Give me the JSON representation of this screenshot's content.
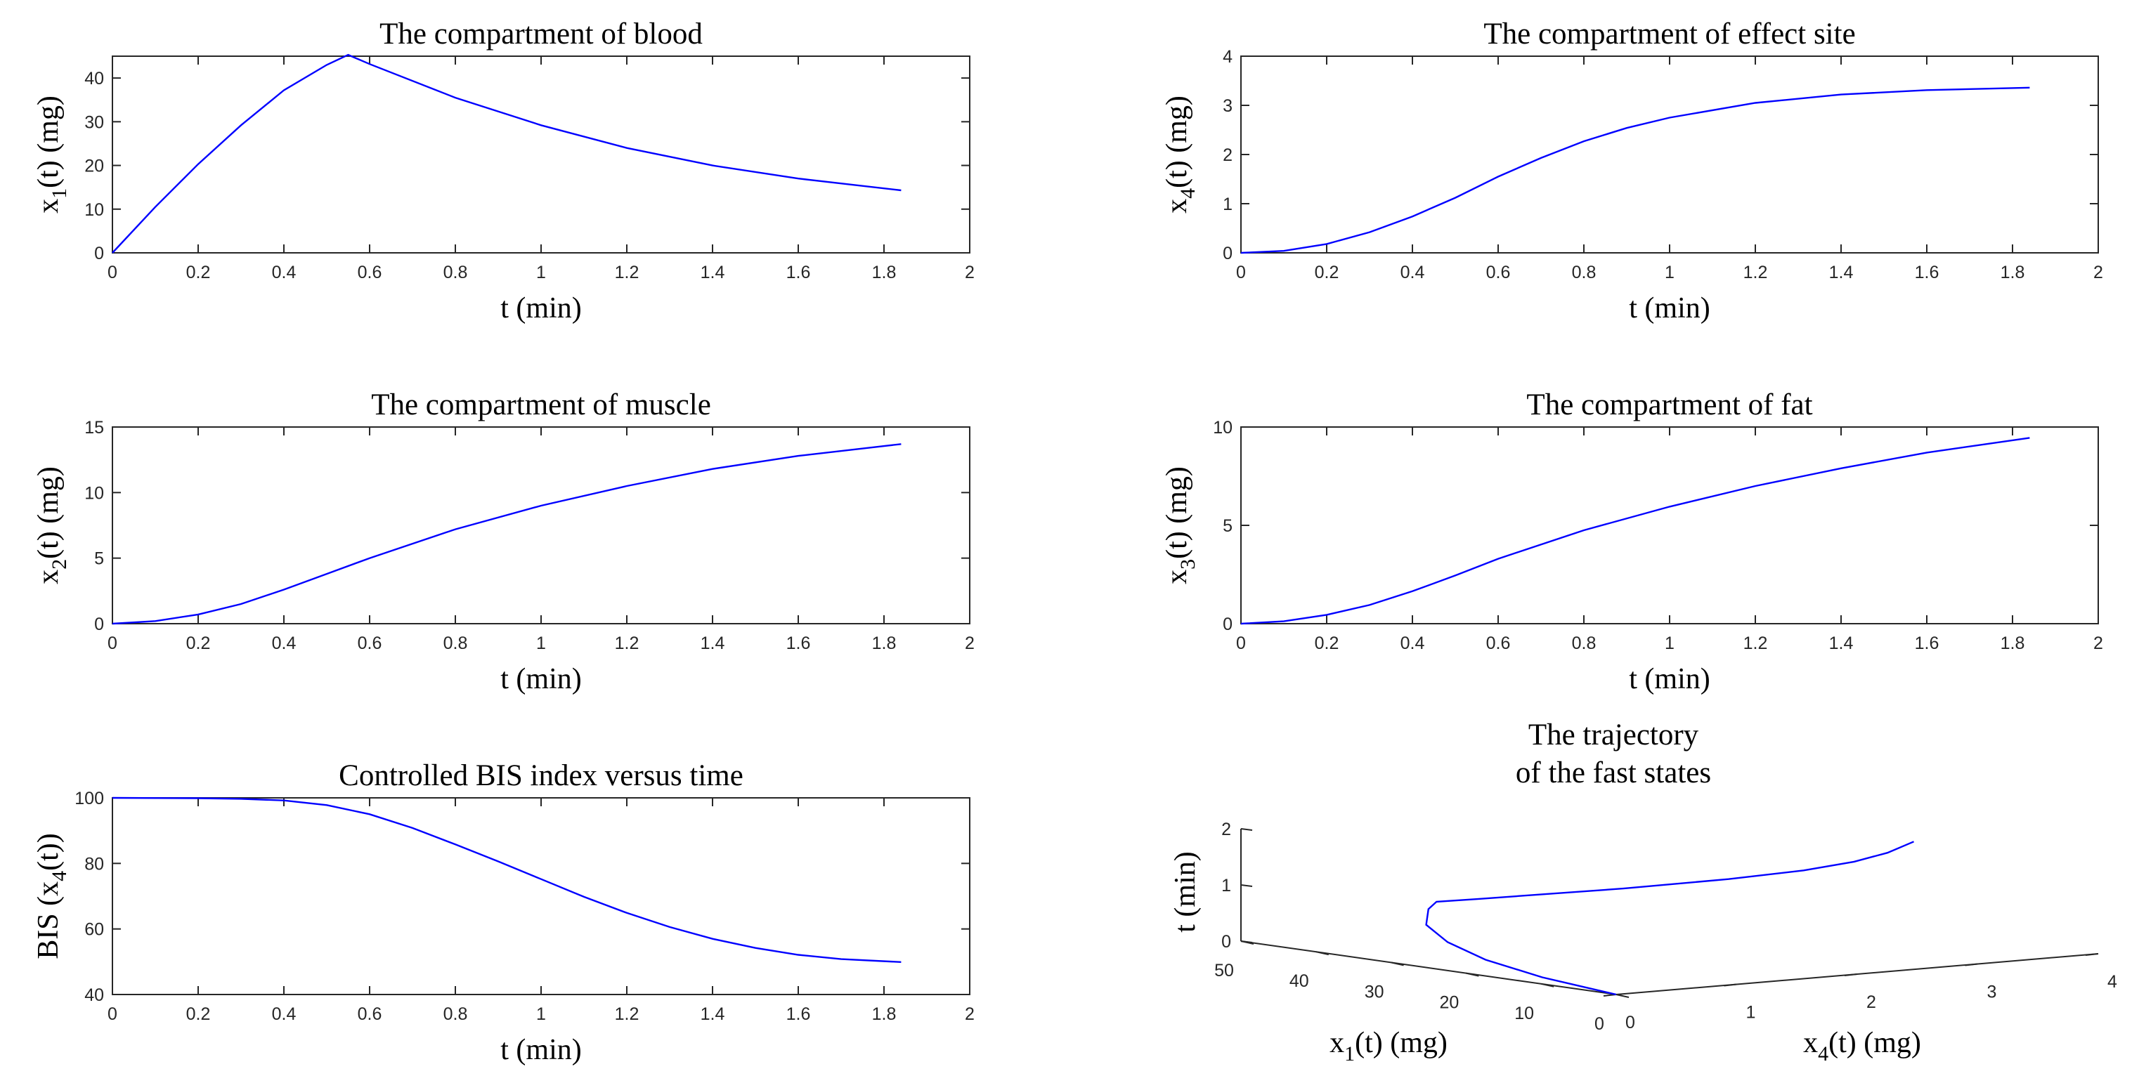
{
  "colors": {
    "line": "#0000ff",
    "axis": "#262626",
    "background": "#ffffff"
  },
  "chart_data": [
    {
      "id": "blood",
      "type": "line",
      "title": "The compartment of blood",
      "xlabel": "t (min)",
      "ylabel": {
        "base": "x",
        "sub": "1",
        "rest": "(t) (mg)"
      },
      "xlim": [
        0,
        2
      ],
      "ylim": [
        0,
        45
      ],
      "xticks": [
        "0",
        "0.2",
        "0.4",
        "0.6",
        "0.8",
        "1",
        "1.2",
        "1.4",
        "1.6",
        "1.8",
        "2"
      ],
      "yticks": [
        "0",
        "10",
        "20",
        "30",
        "40"
      ],
      "ytick_values": [
        0,
        10,
        20,
        30,
        40
      ],
      "series": [
        {
          "name": "x1",
          "x": [
            0,
            0.1,
            0.2,
            0.3,
            0.4,
            0.5,
            0.55,
            0.6,
            0.8,
            1.0,
            1.2,
            1.4,
            1.6,
            1.84
          ],
          "y": [
            0,
            10.5,
            20.3,
            29.2,
            37.2,
            43.0,
            45.3,
            43.2,
            35.5,
            29.2,
            24.0,
            20.0,
            17.0,
            14.3
          ]
        }
      ]
    },
    {
      "id": "effect",
      "type": "line",
      "title": "The compartment of effect site",
      "xlabel": "t (min)",
      "ylabel": {
        "base": "x",
        "sub": "4",
        "rest": "(t) (mg)"
      },
      "xlim": [
        0,
        2
      ],
      "ylim": [
        0,
        4
      ],
      "xticks": [
        "0",
        "0.2",
        "0.4",
        "0.6",
        "0.8",
        "1",
        "1.2",
        "1.4",
        "1.6",
        "1.8",
        "2"
      ],
      "yticks": [
        "0",
        "1",
        "2",
        "3",
        "4"
      ],
      "ytick_values": [
        0,
        1,
        2,
        3,
        4
      ],
      "series": [
        {
          "name": "x4",
          "x": [
            0,
            0.1,
            0.2,
            0.3,
            0.4,
            0.5,
            0.6,
            0.7,
            0.8,
            0.9,
            1.0,
            1.2,
            1.4,
            1.6,
            1.84
          ],
          "y": [
            0,
            0.04,
            0.18,
            0.42,
            0.74,
            1.12,
            1.55,
            1.93,
            2.27,
            2.54,
            2.75,
            3.05,
            3.22,
            3.31,
            3.36
          ]
        }
      ]
    },
    {
      "id": "muscle",
      "type": "line",
      "title": "The compartment of muscle",
      "xlabel": "t (min)",
      "ylabel": {
        "base": "x",
        "sub": "2",
        "rest": "(t) (mg)"
      },
      "xlim": [
        0,
        2
      ],
      "ylim": [
        0,
        15
      ],
      "xticks": [
        "0",
        "0.2",
        "0.4",
        "0.6",
        "0.8",
        "1",
        "1.2",
        "1.4",
        "1.6",
        "1.8",
        "2"
      ],
      "yticks": [
        "0",
        "5",
        "10",
        "15"
      ],
      "ytick_values": [
        0,
        5,
        10,
        15
      ],
      "series": [
        {
          "name": "x2",
          "x": [
            0,
            0.1,
            0.2,
            0.3,
            0.4,
            0.5,
            0.6,
            0.8,
            1.0,
            1.2,
            1.4,
            1.6,
            1.84
          ],
          "y": [
            0,
            0.2,
            0.7,
            1.5,
            2.6,
            3.8,
            5.0,
            7.2,
            9.0,
            10.5,
            11.8,
            12.8,
            13.7
          ]
        }
      ]
    },
    {
      "id": "fat",
      "type": "line",
      "title": "The compartment of fat",
      "xlabel": "t (min)",
      "ylabel": {
        "base": "x",
        "sub": "3",
        "rest": "(t) (mg)"
      },
      "xlim": [
        0,
        2
      ],
      "ylim": [
        0,
        10
      ],
      "xticks": [
        "0",
        "0.2",
        "0.4",
        "0.6",
        "0.8",
        "1",
        "1.2",
        "1.4",
        "1.6",
        "1.8",
        "2"
      ],
      "yticks": [
        "0",
        "5",
        "10"
      ],
      "ytick_values": [
        0,
        5,
        10
      ],
      "series": [
        {
          "name": "x3",
          "x": [
            0,
            0.1,
            0.2,
            0.3,
            0.4,
            0.5,
            0.6,
            0.8,
            1.0,
            1.2,
            1.4,
            1.6,
            1.84
          ],
          "y": [
            0,
            0.12,
            0.45,
            0.95,
            1.65,
            2.45,
            3.3,
            4.75,
            5.95,
            7.0,
            7.9,
            8.7,
            9.45
          ]
        }
      ]
    },
    {
      "id": "bis",
      "type": "line",
      "title": "Controlled BIS index versus time",
      "xlabel": "t (min)",
      "ylabel": {
        "base": "BIS (x",
        "sub": "4",
        "rest": "(t))"
      },
      "xlim": [
        0,
        2
      ],
      "ylim": [
        40,
        100
      ],
      "xticks": [
        "0",
        "0.2",
        "0.4",
        "0.6",
        "0.8",
        "1",
        "1.2",
        "1.4",
        "1.6",
        "1.8",
        "2"
      ],
      "yticks": [
        "40",
        "60",
        "80",
        "100"
      ],
      "ytick_values": [
        40,
        60,
        80,
        100
      ],
      "series": [
        {
          "name": "BIS",
          "x": [
            0,
            0.2,
            0.3,
            0.4,
            0.5,
            0.6,
            0.7,
            0.8,
            0.9,
            1.0,
            1.1,
            1.2,
            1.3,
            1.4,
            1.5,
            1.6,
            1.7,
            1.84
          ],
          "y": [
            100,
            99.9,
            99.7,
            99.2,
            97.8,
            95.0,
            90.8,
            85.8,
            80.6,
            75.2,
            69.8,
            64.9,
            60.6,
            57.0,
            54.2,
            52.1,
            50.8,
            49.9
          ]
        }
      ]
    },
    {
      "id": "trajectory",
      "type": "line3d",
      "title_lines": [
        "The trajectory",
        "of the fast states"
      ],
      "xlabel": {
        "base": "x",
        "sub": "1",
        "rest": "(t) (mg)"
      },
      "ylabel": {
        "base": "x",
        "sub": "4",
        "rest": "(t) (mg)"
      },
      "zlabel": "t (min)",
      "x1_lim": [
        0,
        50
      ],
      "x4_lim": [
        0,
        4
      ],
      "t_lim": [
        0,
        2
      ],
      "x1_ticks": [
        "0",
        "10",
        "20",
        "30",
        "40",
        "50"
      ],
      "x1_tick_values": [
        0,
        10,
        20,
        30,
        40,
        50
      ],
      "x4_ticks": [
        "0",
        "1",
        "2",
        "3",
        "4"
      ],
      "x4_tick_values": [
        0,
        1,
        2,
        3,
        4
      ],
      "t_ticks": [
        "0",
        "1",
        "2"
      ],
      "t_tick_values": [
        0,
        1,
        2
      ],
      "series": [
        {
          "name": "trajectory",
          "x1": [
            0,
            10.5,
            20.3,
            29.2,
            37.2,
            43.0,
            45.3,
            43.2,
            35.5,
            29.2,
            24.0,
            20.0,
            17.0,
            14.3
          ],
          "x4": [
            0,
            0.04,
            0.18,
            0.42,
            0.74,
            1.12,
            1.33,
            1.55,
            2.27,
            2.75,
            3.05,
            3.22,
            3.31,
            3.36
          ],
          "t": [
            0,
            0.1,
            0.2,
            0.3,
            0.4,
            0.5,
            0.55,
            0.6,
            0.8,
            1.0,
            1.2,
            1.4,
            1.6,
            1.84
          ]
        }
      ]
    }
  ]
}
